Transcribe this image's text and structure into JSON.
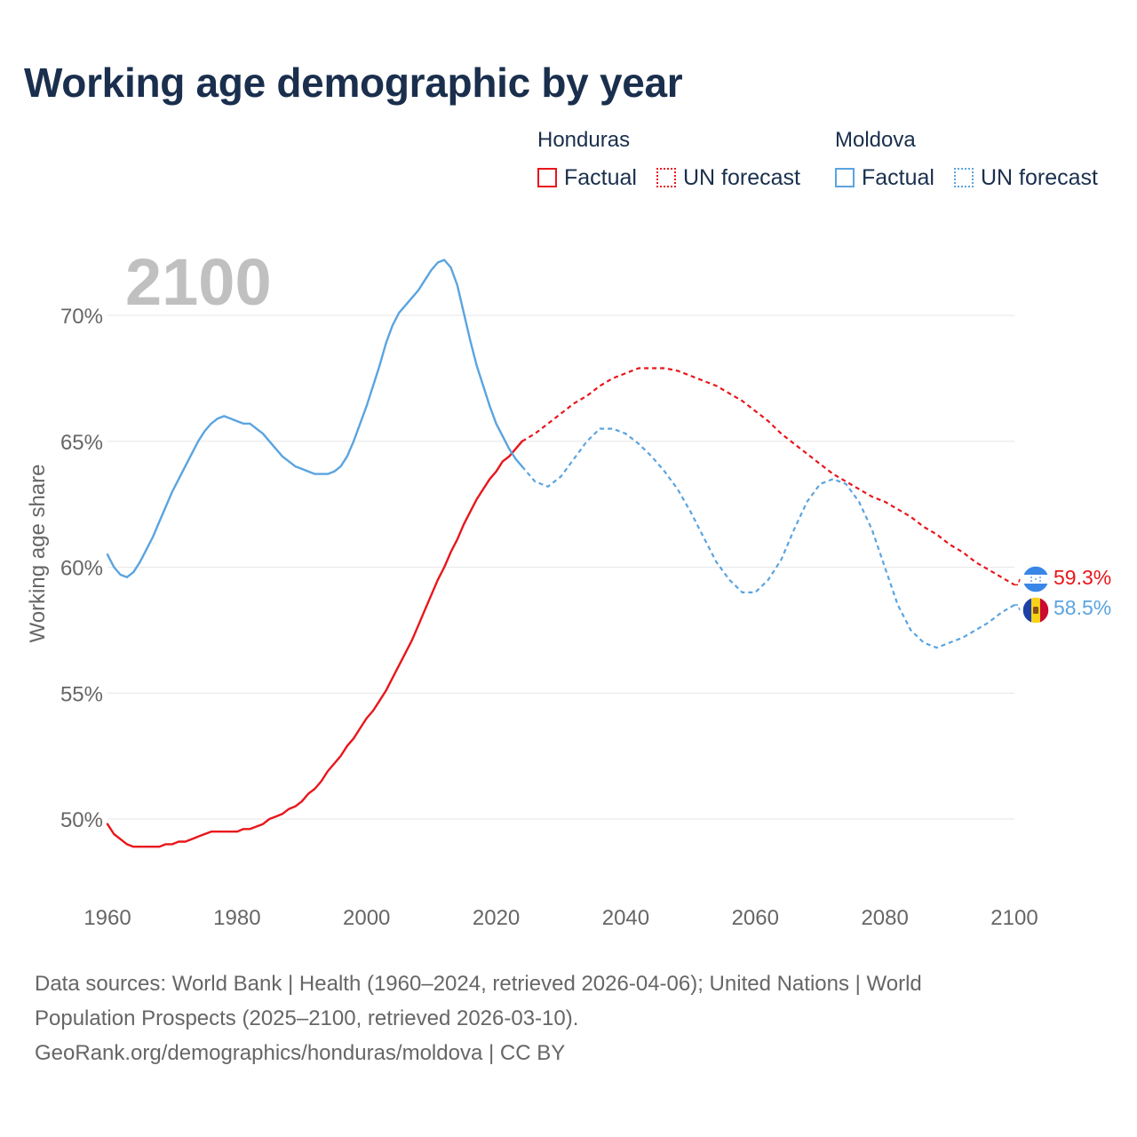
{
  "colors": {
    "honduras": "#e8161b",
    "moldova": "#5aa4e0",
    "title": "#1a2f4d",
    "axis_text": "#666666",
    "year_watermark": "#c0c0c0",
    "grid": "#e6e6e6"
  },
  "title": "Working age demographic by year",
  "legend": {
    "groups": [
      {
        "name": "Honduras",
        "factual": "Factual",
        "forecast": "UN forecast"
      },
      {
        "name": "Moldova",
        "factual": "Factual",
        "forecast": "UN forecast"
      }
    ]
  },
  "footer": {
    "line1": "Data sources: World Bank | Health (1960–2024, retrieved 2026-04-06); United Nations | World",
    "line2": "Population Prospects (2025–2100, retrieved 2026-03-10).",
    "line3": "GeoRank.org/demographics/honduras/moldova | CC BY"
  },
  "chart_data": {
    "type": "line",
    "title": "Working age demographic by year",
    "year_label": "2100",
    "xlabel": "",
    "ylabel": "Working age share",
    "xlim": [
      1960,
      2100
    ],
    "ylim": [
      47.5,
      73
    ],
    "x_ticks": [
      1960,
      1980,
      2000,
      2020,
      2040,
      2060,
      2080,
      2100
    ],
    "y_ticks": [
      {
        "value": 50,
        "label": "50%"
      },
      {
        "value": 55,
        "label": "55%"
      },
      {
        "value": 60,
        "label": "60%"
      },
      {
        "value": 65,
        "label": "65%"
      },
      {
        "value": 70,
        "label": "70%"
      }
    ],
    "grid": true,
    "factual_end_year": 2024,
    "series": [
      {
        "name": "Honduras",
        "color_key": "honduras",
        "end_label": "59.3%",
        "flag": "honduras-flag",
        "points": [
          [
            1960,
            49.8
          ],
          [
            1961,
            49.4
          ],
          [
            1962,
            49.2
          ],
          [
            1963,
            49.0
          ],
          [
            1964,
            48.9
          ],
          [
            1965,
            48.9
          ],
          [
            1966,
            48.9
          ],
          [
            1967,
            48.9
          ],
          [
            1968,
            48.9
          ],
          [
            1969,
            49.0
          ],
          [
            1970,
            49.0
          ],
          [
            1971,
            49.1
          ],
          [
            1972,
            49.1
          ],
          [
            1973,
            49.2
          ],
          [
            1974,
            49.3
          ],
          [
            1975,
            49.4
          ],
          [
            1976,
            49.5
          ],
          [
            1977,
            49.5
          ],
          [
            1978,
            49.5
          ],
          [
            1979,
            49.5
          ],
          [
            1980,
            49.5
          ],
          [
            1981,
            49.6
          ],
          [
            1982,
            49.6
          ],
          [
            1983,
            49.7
          ],
          [
            1984,
            49.8
          ],
          [
            1985,
            50.0
          ],
          [
            1986,
            50.1
          ],
          [
            1987,
            50.2
          ],
          [
            1988,
            50.4
          ],
          [
            1989,
            50.5
          ],
          [
            1990,
            50.7
          ],
          [
            1991,
            51.0
          ],
          [
            1992,
            51.2
          ],
          [
            1993,
            51.5
          ],
          [
            1994,
            51.9
          ],
          [
            1995,
            52.2
          ],
          [
            1996,
            52.5
          ],
          [
            1997,
            52.9
          ],
          [
            1998,
            53.2
          ],
          [
            1999,
            53.6
          ],
          [
            2000,
            54.0
          ],
          [
            2001,
            54.3
          ],
          [
            2002,
            54.7
          ],
          [
            2003,
            55.1
          ],
          [
            2004,
            55.6
          ],
          [
            2005,
            56.1
          ],
          [
            2006,
            56.6
          ],
          [
            2007,
            57.1
          ],
          [
            2008,
            57.7
          ],
          [
            2009,
            58.3
          ],
          [
            2010,
            58.9
          ],
          [
            2011,
            59.5
          ],
          [
            2012,
            60.0
          ],
          [
            2013,
            60.6
          ],
          [
            2014,
            61.1
          ],
          [
            2015,
            61.7
          ],
          [
            2016,
            62.2
          ],
          [
            2017,
            62.7
          ],
          [
            2018,
            63.1
          ],
          [
            2019,
            63.5
          ],
          [
            2020,
            63.8
          ],
          [
            2021,
            64.2
          ],
          [
            2022,
            64.4
          ],
          [
            2023,
            64.7
          ],
          [
            2024,
            65.0
          ],
          [
            2026,
            65.3
          ],
          [
            2028,
            65.7
          ],
          [
            2030,
            66.1
          ],
          [
            2032,
            66.5
          ],
          [
            2034,
            66.8
          ],
          [
            2036,
            67.2
          ],
          [
            2038,
            67.5
          ],
          [
            2040,
            67.7
          ],
          [
            2042,
            67.9
          ],
          [
            2044,
            67.9
          ],
          [
            2046,
            67.9
          ],
          [
            2048,
            67.8
          ],
          [
            2050,
            67.6
          ],
          [
            2052,
            67.4
          ],
          [
            2054,
            67.2
          ],
          [
            2056,
            66.9
          ],
          [
            2058,
            66.6
          ],
          [
            2060,
            66.2
          ],
          [
            2062,
            65.8
          ],
          [
            2064,
            65.3
          ],
          [
            2066,
            64.9
          ],
          [
            2068,
            64.5
          ],
          [
            2070,
            64.1
          ],
          [
            2072,
            63.7
          ],
          [
            2074,
            63.4
          ],
          [
            2076,
            63.1
          ],
          [
            2078,
            62.8
          ],
          [
            2080,
            62.6
          ],
          [
            2082,
            62.3
          ],
          [
            2084,
            62.0
          ],
          [
            2086,
            61.6
          ],
          [
            2088,
            61.3
          ],
          [
            2090,
            60.9
          ],
          [
            2092,
            60.6
          ],
          [
            2094,
            60.2
          ],
          [
            2096,
            59.9
          ],
          [
            2098,
            59.6
          ],
          [
            2100,
            59.3
          ]
        ]
      },
      {
        "name": "Moldova",
        "color_key": "moldova",
        "end_label": "58.5%",
        "flag": "moldova-flag",
        "points": [
          [
            1960,
            60.5
          ],
          [
            1961,
            60.0
          ],
          [
            1962,
            59.7
          ],
          [
            1963,
            59.6
          ],
          [
            1964,
            59.8
          ],
          [
            1965,
            60.2
          ],
          [
            1966,
            60.7
          ],
          [
            1967,
            61.2
          ],
          [
            1968,
            61.8
          ],
          [
            1969,
            62.4
          ],
          [
            1970,
            63.0
          ],
          [
            1971,
            63.5
          ],
          [
            1972,
            64.0
          ],
          [
            1973,
            64.5
          ],
          [
            1974,
            65.0
          ],
          [
            1975,
            65.4
          ],
          [
            1976,
            65.7
          ],
          [
            1977,
            65.9
          ],
          [
            1978,
            66.0
          ],
          [
            1979,
            65.9
          ],
          [
            1980,
            65.8
          ],
          [
            1981,
            65.7
          ],
          [
            1982,
            65.7
          ],
          [
            1983,
            65.5
          ],
          [
            1984,
            65.3
          ],
          [
            1985,
            65.0
          ],
          [
            1986,
            64.7
          ],
          [
            1987,
            64.4
          ],
          [
            1988,
            64.2
          ],
          [
            1989,
            64.0
          ],
          [
            1990,
            63.9
          ],
          [
            1991,
            63.8
          ],
          [
            1992,
            63.7
          ],
          [
            1993,
            63.7
          ],
          [
            1994,
            63.7
          ],
          [
            1995,
            63.8
          ],
          [
            1996,
            64.0
          ],
          [
            1997,
            64.4
          ],
          [
            1998,
            65.0
          ],
          [
            1999,
            65.7
          ],
          [
            2000,
            66.4
          ],
          [
            2001,
            67.2
          ],
          [
            2002,
            68.0
          ],
          [
            2003,
            68.9
          ],
          [
            2004,
            69.6
          ],
          [
            2005,
            70.1
          ],
          [
            2006,
            70.4
          ],
          [
            2007,
            70.7
          ],
          [
            2008,
            71.0
          ],
          [
            2009,
            71.4
          ],
          [
            2010,
            71.8
          ],
          [
            2011,
            72.1
          ],
          [
            2012,
            72.2
          ],
          [
            2013,
            71.9
          ],
          [
            2014,
            71.2
          ],
          [
            2015,
            70.1
          ],
          [
            2016,
            69.0
          ],
          [
            2017,
            68.0
          ],
          [
            2018,
            67.2
          ],
          [
            2019,
            66.4
          ],
          [
            2020,
            65.7
          ],
          [
            2021,
            65.2
          ],
          [
            2022,
            64.7
          ],
          [
            2023,
            64.3
          ],
          [
            2024,
            64.0
          ],
          [
            2026,
            63.4
          ],
          [
            2028,
            63.2
          ],
          [
            2030,
            63.6
          ],
          [
            2032,
            64.3
          ],
          [
            2034,
            65.0
          ],
          [
            2036,
            65.5
          ],
          [
            2038,
            65.5
          ],
          [
            2040,
            65.3
          ],
          [
            2042,
            64.9
          ],
          [
            2044,
            64.4
          ],
          [
            2046,
            63.8
          ],
          [
            2048,
            63.1
          ],
          [
            2050,
            62.2
          ],
          [
            2052,
            61.2
          ],
          [
            2054,
            60.2
          ],
          [
            2056,
            59.5
          ],
          [
            2058,
            59.0
          ],
          [
            2060,
            59.0
          ],
          [
            2062,
            59.5
          ],
          [
            2064,
            60.3
          ],
          [
            2066,
            61.5
          ],
          [
            2068,
            62.6
          ],
          [
            2070,
            63.3
          ],
          [
            2072,
            63.5
          ],
          [
            2074,
            63.3
          ],
          [
            2076,
            62.6
          ],
          [
            2078,
            61.5
          ],
          [
            2080,
            60.0
          ],
          [
            2082,
            58.5
          ],
          [
            2084,
            57.5
          ],
          [
            2086,
            57.0
          ],
          [
            2088,
            56.8
          ],
          [
            2090,
            57.0
          ],
          [
            2092,
            57.2
          ],
          [
            2094,
            57.5
          ],
          [
            2096,
            57.8
          ],
          [
            2098,
            58.2
          ],
          [
            2100,
            58.5
          ]
        ]
      }
    ]
  }
}
